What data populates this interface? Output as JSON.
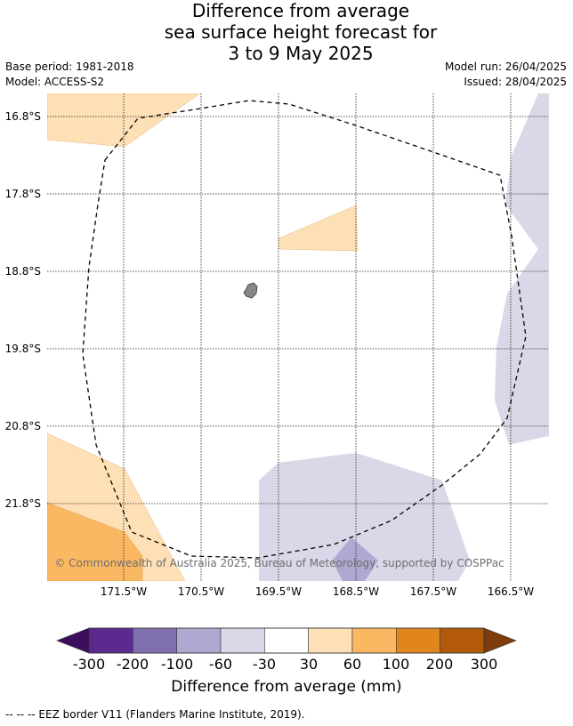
{
  "title": {
    "line1": "Difference from average",
    "line2": "sea surface height forecast for",
    "line3": "3 to 9 May 2025"
  },
  "meta": {
    "base_period": "Base period: 1981-2018",
    "model": "Model: ACCESS-S2",
    "model_run": "Model run: 26/04/2025",
    "issued": "Issued: 28/04/2025"
  },
  "map": {
    "lat_labels": [
      "16.8°S",
      "17.8°S",
      "18.8°S",
      "19.8°S",
      "20.8°S",
      "21.8°S"
    ],
    "lon_labels": [
      "171.5°W",
      "170.5°W",
      "169.5°W",
      "168.5°W",
      "167.5°W",
      "166.5°W"
    ],
    "copyright": "© Commonwealth of Australia 2025, Bureau of Meteorology, supported by COSPPac"
  },
  "colorbar": {
    "ticks": [
      "-300",
      "-200",
      "-100",
      "-60",
      "-30",
      "30",
      "60",
      "100",
      "200",
      "300"
    ],
    "colors": [
      "#5b2a8e",
      "#8070b0",
      "#b1a8d2",
      "#d8d8e8",
      "#ffffff",
      "#fde0b5",
      "#fbb862",
      "#e0861c",
      "#b35a0a"
    ],
    "under_color": "#3d0d5e",
    "over_color": "#7f3c0a",
    "label": "Difference from average (mm)"
  },
  "footer": {
    "legend": "--  --  -- EEZ border V11 (Flanders Marine Institute, 2019)."
  }
}
